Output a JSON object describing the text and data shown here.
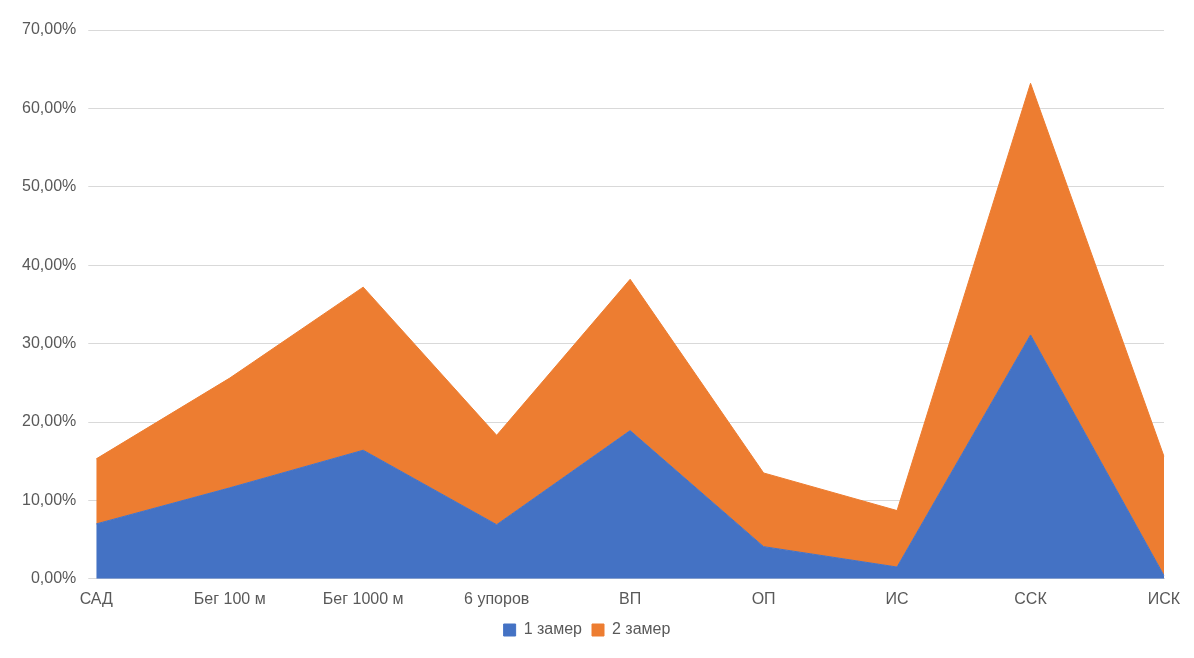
{
  "chart_data": {
    "type": "area",
    "stacked": true,
    "categories": [
      "САД",
      "Бег 100 м",
      "Бег 1000 м",
      "6 упоров",
      "ВП",
      "ОП",
      "ИС",
      "ССК",
      "ИСК"
    ],
    "series": [
      {
        "name": "1 замер",
        "color": "#4472c4",
        "values": [
          7.0,
          11.6,
          16.4,
          6.9,
          18.9,
          4.1,
          1.5,
          31.1,
          0.4
        ]
      },
      {
        "name": "2 замер",
        "color": "#ed7d31",
        "values": [
          8.3,
          14.0,
          20.8,
          11.4,
          19.3,
          9.4,
          7.2,
          32.1,
          15.2
        ]
      }
    ],
    "ylim": [
      0,
      70
    ],
    "yticks": [
      {
        "value": 0,
        "label": "0,00%"
      },
      {
        "value": 10,
        "label": "10,00%"
      },
      {
        "value": 20,
        "label": "20,00%"
      },
      {
        "value": 30,
        "label": "30,00%"
      },
      {
        "value": 40,
        "label": "40,00%"
      },
      {
        "value": 50,
        "label": "50,00%"
      },
      {
        "value": 60,
        "label": "60,00%"
      },
      {
        "value": 70,
        "label": "70,00%"
      }
    ],
    "grid": "y",
    "legend": "bottom",
    "marker": "none"
  }
}
